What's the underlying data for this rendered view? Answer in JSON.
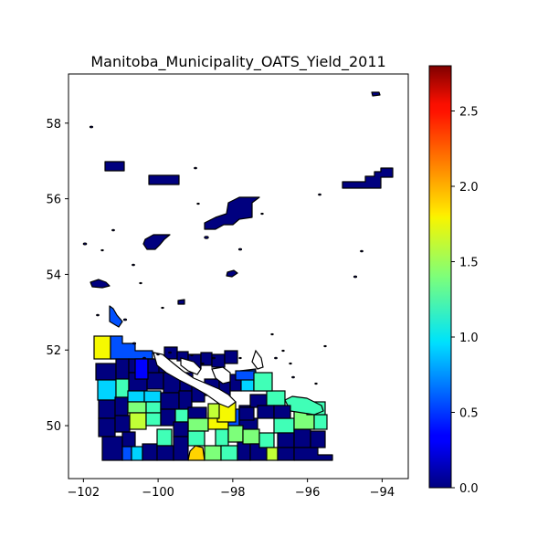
{
  "title": "Manitoba_Municipality_OATS_Yield_2011",
  "chart_data": {
    "type": "choropleth map",
    "title": "Manitoba_Municipality_OATS_Yield_2011",
    "xlabel": "",
    "ylabel": "",
    "xlim": [
      -102.4,
      -93.3
    ],
    "ylim": [
      48.6,
      59.3
    ],
    "x_ticks": [
      -102,
      -100,
      -98,
      -96,
      -94
    ],
    "y_ticks": [
      50,
      52,
      54,
      56,
      58
    ],
    "colorbar": {
      "colormap": "jet",
      "range": [
        0.0,
        2.8
      ],
      "ticks": [
        0.0,
        0.5,
        1.0,
        1.5,
        2.0,
        2.5
      ],
      "tick_labels": [
        "0.0",
        "0.5",
        "1.0",
        "1.5",
        "2.0",
        "2.5"
      ]
    }
  },
  "axes": {
    "x_tick_labels": [
      "−102",
      "−100",
      "−98",
      "−96",
      "−94"
    ],
    "y_tick_labels": [
      "50",
      "52",
      "54",
      "56",
      "58"
    ]
  }
}
